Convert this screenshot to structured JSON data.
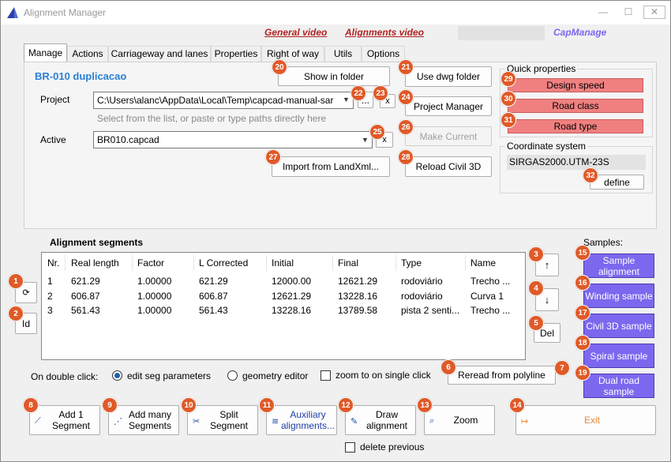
{
  "window": {
    "title": "Alignment Manager",
    "minimize": "—",
    "maximize": "☐",
    "close": "✕"
  },
  "links": {
    "general_video": "General video",
    "alignments_video": "Alignments video",
    "capmanage": "CapManage"
  },
  "tabs": [
    "Manage",
    "Actions",
    "Carriageway and lanes",
    "Properties",
    "Right of way",
    "Utils",
    "Options"
  ],
  "manage": {
    "heading": "BR-010 duplicacao",
    "project_label": "Project",
    "project_value": "C:\\Users\\alanc\\AppData\\Local\\Temp\\capcad-manual-sar",
    "project_hint": "Select from the list, or paste or type paths directly here",
    "active_label": "Active",
    "active_value": "BR010.capcad",
    "browse_label": "...",
    "clear_label": "x",
    "show_in_folder": "Show in folder",
    "use_dwg_folder": "Use dwg folder",
    "project_manager": "Project Manager",
    "make_current": "Make Current",
    "import_landxml": "Import from LandXml...",
    "reload_civil3d": "Reload Civil 3D"
  },
  "quick_properties": {
    "label": "Quick properties",
    "design_speed": "Design speed",
    "road_class": "Road class",
    "road_type": "Road type"
  },
  "coordinate_system": {
    "label": "Coordinate system",
    "value": "SIRGAS2000.UTM-23S",
    "define": "define"
  },
  "segments": {
    "label": "Alignment segments",
    "columns": [
      "Nr.",
      "Real length",
      "Factor",
      "L Corrected",
      "Initial",
      "Final",
      "Type",
      "Name"
    ],
    "rows": [
      [
        "1",
        "621.29",
        "1.00000",
        "621.29",
        "12000.00",
        "12621.29",
        "rodoviário",
        "Trecho ..."
      ],
      [
        "2",
        "606.87",
        "1.00000",
        "606.87",
        "12621.29",
        "13228.16",
        "rodoviário",
        "Curva 1"
      ],
      [
        "3",
        "561.43",
        "1.00000",
        "561.43",
        "13228.16",
        "13789.58",
        "pista 2 senti...",
        "Trecho ..."
      ]
    ],
    "refresh_icon": "⟳",
    "id_label": "Id",
    "up": "↑",
    "down": "↓",
    "del": "Del"
  },
  "samples": {
    "label": "Samples:",
    "items": [
      "Sample alignment",
      "Winding sample",
      "Civil 3D sample",
      "Spiral sample",
      "Dual road sample"
    ]
  },
  "double_click": {
    "label": "On double click:",
    "edit_seg": "edit seg parameters",
    "geometry_editor": "geometry editor",
    "zoom_single": "zoom to on single click",
    "reread": "Reread from polyline"
  },
  "bottom": {
    "add_one": "Add 1 Segment",
    "add_many": "Add many Segments",
    "split": "Split Segment",
    "auxiliary": "Auxiliary alignments...",
    "draw": "Draw alignment",
    "zoom": "Zoom",
    "exit": "Exit",
    "delete_previous": "delete previous"
  },
  "badges": [
    "1",
    "2",
    "3",
    "4",
    "5",
    "6",
    "7",
    "8",
    "9",
    "10",
    "11",
    "12",
    "13",
    "14",
    "15",
    "16",
    "17",
    "18",
    "19",
    "20",
    "21",
    "22",
    "23",
    "24",
    "25",
    "26",
    "27",
    "28",
    "29",
    "30",
    "31",
    "32"
  ],
  "colors": {
    "badge": "#e05a28",
    "sample": "#7b68ee",
    "quick_field": "#f08080",
    "link": "#b22222",
    "capmanage": "#7b68ee",
    "heading": "#2a7fd4"
  }
}
